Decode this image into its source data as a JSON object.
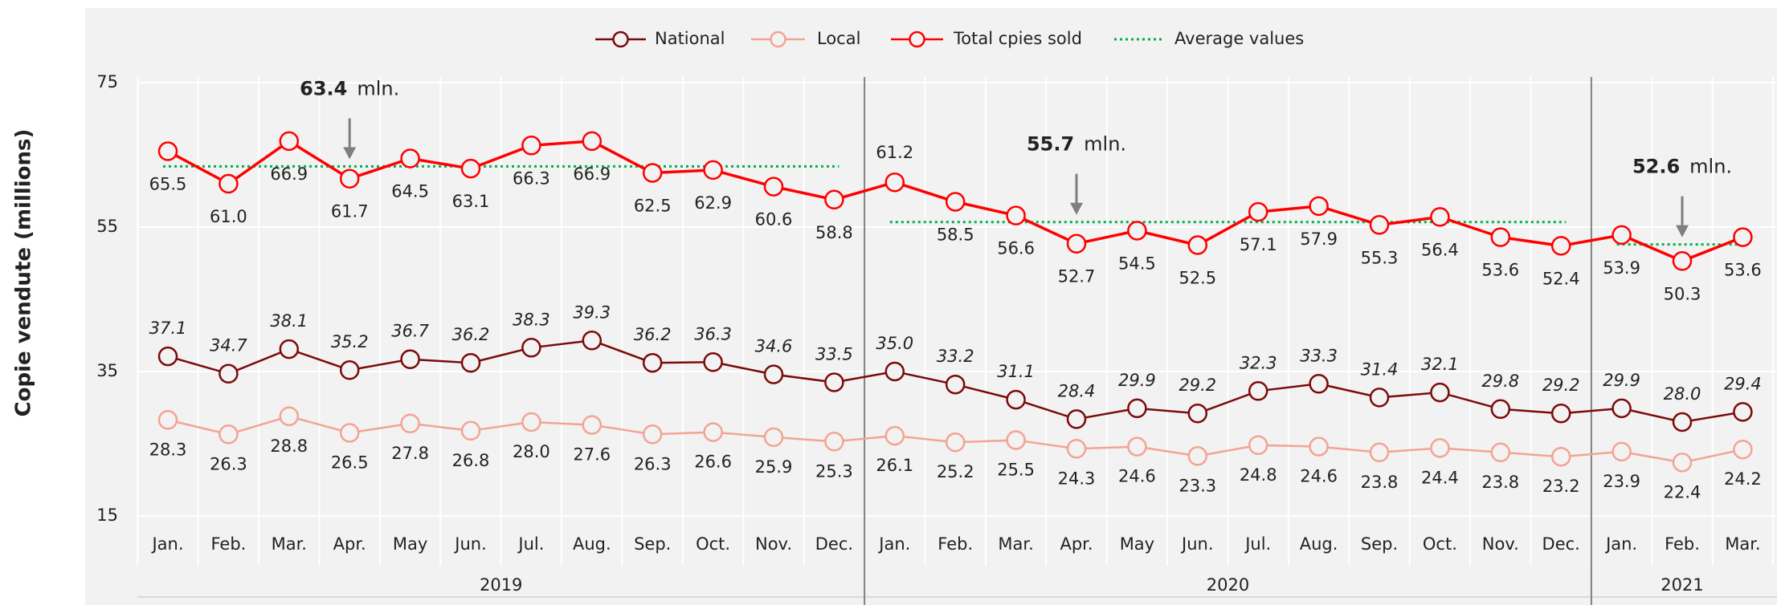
{
  "chart_data": {
    "type": "line",
    "y_label": "Copie vendute (millions)",
    "groups": [
      {
        "label": "2019",
        "categories": [
          "Jan.",
          "Feb.",
          "Mar.",
          "Apr.",
          "May",
          "Jun.",
          "Jul.",
          "Aug.",
          "Sep.",
          "Oct.",
          "Nov.",
          "Dec."
        ],
        "average": 63.4,
        "unit": "mln."
      },
      {
        "label": "2020",
        "categories": [
          "Jan.",
          "Feb.",
          "Mar.",
          "Apr.",
          "May",
          "Jun.",
          "Jul.",
          "Aug.",
          "Sep.",
          "Oct.",
          "Nov.",
          "Dec."
        ],
        "average": 55.7,
        "unit": "mln."
      },
      {
        "label": "2021",
        "categories": [
          "Jan.",
          "Feb.",
          "Mar."
        ],
        "average": 52.6,
        "unit": "mln."
      }
    ],
    "series": [
      {
        "name": "National",
        "color": "#7b0a0a",
        "values": [
          37.1,
          34.7,
          38.1,
          35.2,
          36.7,
          36.2,
          38.3,
          39.3,
          36.2,
          36.3,
          34.6,
          33.5,
          35.0,
          33.2,
          31.1,
          28.4,
          29.9,
          29.2,
          32.3,
          33.3,
          31.4,
          32.1,
          29.8,
          29.2,
          29.9,
          28.0,
          29.4
        ],
        "value_labels": [
          "37.1",
          "34.7",
          "38.1",
          "35.2",
          "36.7",
          "36.2",
          "38.3",
          "39.3",
          "36.2",
          "36.3",
          "34.6",
          "33.5",
          "35.0",
          "33.2",
          "31.1",
          "28.4",
          "29.9",
          "29.2",
          "32.3",
          "33.3",
          "31.4",
          "32.1",
          "29.8",
          "29.2",
          "29.9",
          "28.0",
          "29.4"
        ]
      },
      {
        "name": "Local",
        "color": "#f4a393",
        "values": [
          28.3,
          26.3,
          28.8,
          26.5,
          27.8,
          26.8,
          28.0,
          27.6,
          26.3,
          26.6,
          25.9,
          25.3,
          26.1,
          25.2,
          25.5,
          24.3,
          24.6,
          23.3,
          24.8,
          24.6,
          23.8,
          24.4,
          23.8,
          23.2,
          23.9,
          22.4,
          24.2
        ],
        "value_labels": [
          "28.3",
          "26.3",
          "28.8",
          "26.5",
          "27.8",
          "26.8",
          "28.0",
          "27.6",
          "26.3",
          "26.6",
          "25.9",
          "25.3",
          "26.1",
          "25.2",
          "25.5",
          "24.3",
          "24.6",
          "23.3",
          "24.8",
          "24.6",
          "23.8",
          "24.4",
          "23.8",
          "23.2",
          "23.9",
          "22.4",
          "24.2"
        ]
      },
      {
        "name": "Total cpies sold",
        "color": "#ff0000",
        "values": [
          65.5,
          61.0,
          66.9,
          61.7,
          64.5,
          63.1,
          66.3,
          66.9,
          62.5,
          62.9,
          60.6,
          58.8,
          61.2,
          58.5,
          56.6,
          52.7,
          54.5,
          52.5,
          57.1,
          57.9,
          55.3,
          56.4,
          53.6,
          52.4,
          53.9,
          50.3,
          53.6
        ],
        "value_labels": [
          "65.5",
          "61.0",
          "66.9",
          "61.7",
          "64.5",
          "63.1",
          "66.3",
          "66.9",
          "62.5",
          "62.9",
          "60.6",
          "58.8",
          "61.2",
          "58.5",
          "56.6",
          "52.7",
          "54.5",
          "52.5",
          "57.1",
          "57.9",
          "55.3",
          "56.4",
          "53.6",
          "52.4",
          "53.9",
          "50.3",
          "53.6"
        ]
      }
    ],
    "average_name": "Average values",
    "average_color": "#00b050",
    "ylim": [
      15,
      75
    ],
    "yticks": [
      15,
      35,
      55,
      75
    ],
    "grid": true
  }
}
